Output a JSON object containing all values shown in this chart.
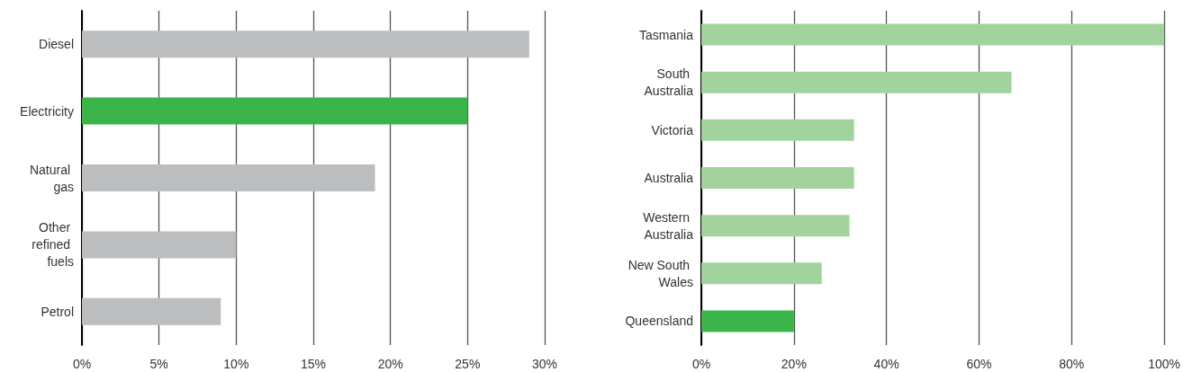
{
  "chart_data": [
    {
      "type": "bar",
      "orientation": "horizontal",
      "categories": [
        "Diesel",
        "Electricity",
        "Natural gas",
        "Other refined fuels",
        "Petrol"
      ],
      "values": [
        29,
        25,
        19,
        10,
        9
      ],
      "colors": [
        "#bcbdbf",
        "#3bb54a",
        "#bcbdbf",
        "#bcbdbf",
        "#bcbdbf"
      ],
      "xlim": [
        0,
        30
      ],
      "xticks": [
        {
          "value": 0,
          "label": "0%"
        },
        {
          "value": 5,
          "label": "5%"
        },
        {
          "value": 10,
          "label": "10%"
        },
        {
          "value": 15,
          "label": "15%"
        },
        {
          "value": 20,
          "label": "20%"
        },
        {
          "value": 25,
          "label": "25%"
        },
        {
          "value": 30,
          "label": "30%"
        }
      ],
      "grid": "x"
    },
    {
      "type": "bar",
      "orientation": "horizontal",
      "categories": [
        "Tasmania",
        "South Australia",
        "Victoria",
        "Australia",
        "Western Australia",
        "New South Wales",
        "Queensland"
      ],
      "values": [
        100,
        67,
        33,
        33,
        32,
        26,
        20
      ],
      "colors": [
        "#a3d39c",
        "#a3d39c",
        "#a3d39c",
        "#a3d39c",
        "#a3d39c",
        "#a3d39c",
        "#3bb54a"
      ],
      "xlim": [
        0,
        100
      ],
      "xticks": [
        {
          "value": 0,
          "label": "0%"
        },
        {
          "value": 20,
          "label": "20%"
        },
        {
          "value": 40,
          "label": "40%"
        },
        {
          "value": 60,
          "label": "60%"
        },
        {
          "value": 80,
          "label": "80%"
        },
        {
          "value": 100,
          "label": "100%"
        }
      ],
      "grid": "x"
    }
  ]
}
